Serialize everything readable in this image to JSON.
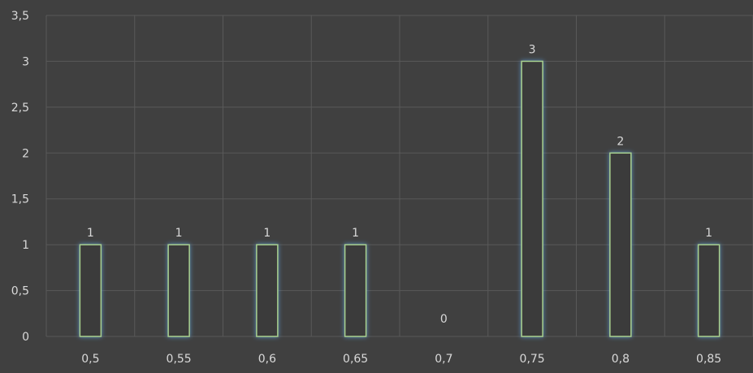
{
  "chart_data": {
    "type": "bar",
    "categories": [
      "0,5",
      "0,55",
      "0,6",
      "0,65",
      "0,7",
      "0,75",
      "0,8",
      "0,85"
    ],
    "values": [
      1,
      1,
      1,
      1,
      0,
      3,
      2,
      1
    ],
    "data_labels": [
      "1",
      "1",
      "1",
      "1",
      "0",
      "3",
      "2",
      "1"
    ],
    "y_ticks": [
      0,
      0.5,
      1,
      1.5,
      2,
      2.5,
      3,
      3.5
    ],
    "y_tick_labels": [
      "0",
      "0,5",
      "1",
      "1,5",
      "2",
      "2,5",
      "3",
      "3,5"
    ],
    "ylim": [
      0,
      3.5
    ],
    "grid": true,
    "legend": "none",
    "colors": {
      "background": "#404040",
      "gridline": "#595959",
      "bar_outline": "#a9d18e",
      "bar_glow": "#5b9bd5",
      "text": "#d9d9d9"
    }
  }
}
